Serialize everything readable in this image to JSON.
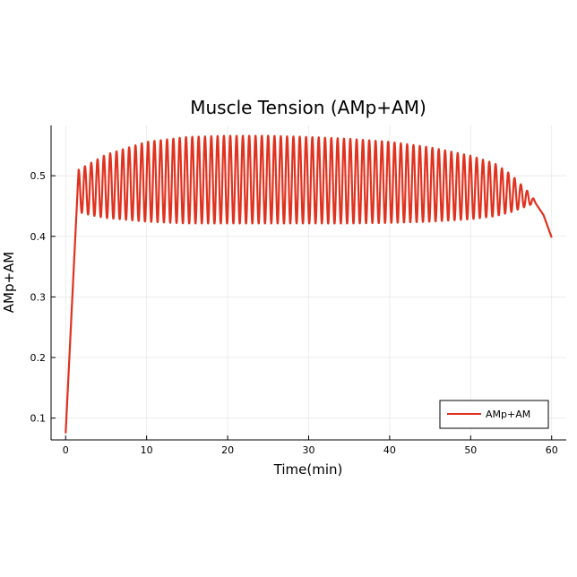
{
  "chart_data": {
    "type": "line",
    "title": "Muscle Tension  (AMp+AM)",
    "xlabel": "Time(min)",
    "ylabel": "AMp+AM",
    "xlim": [
      -1.8,
      61.8
    ],
    "ylim": [
      0.064,
      0.583
    ],
    "xticks": [
      0,
      10,
      20,
      30,
      40,
      50,
      60
    ],
    "yticks": [
      0.1,
      0.2,
      0.3,
      0.4,
      0.5
    ],
    "xtick_labels": [
      "0",
      "10",
      "20",
      "30",
      "40",
      "50",
      "60"
    ],
    "ytick_labels": [
      "0.1",
      "0.2",
      "0.3",
      "0.4",
      "0.5"
    ],
    "grid": true,
    "legend_position": "bottom-right",
    "colors": {
      "series": "#e0321f",
      "axis": "#000000",
      "grid": "#e6e6e6"
    },
    "series": [
      {
        "name": "AMp+AM",
        "description_envelope": {
          "start": [
            0,
            0.075
          ],
          "first_peak": [
            1.6,
            0.51
          ],
          "oscillation_period_min": 0.78,
          "upper": [
            [
              1.6,
              0.51
            ],
            [
              5,
              0.535
            ],
            [
              10,
              0.556
            ],
            [
              15,
              0.564
            ],
            [
              20,
              0.566
            ],
            [
              25,
              0.566
            ],
            [
              30,
              0.564
            ],
            [
              35,
              0.561
            ],
            [
              40,
              0.556
            ],
            [
              45,
              0.547
            ],
            [
              50,
              0.533
            ],
            [
              53,
              0.52
            ],
            [
              55,
              0.502
            ],
            [
              57,
              0.475
            ],
            [
              58,
              0.458
            ]
          ],
          "lower": [
            [
              1.6,
              0.44
            ],
            [
              3,
              0.435
            ],
            [
              5,
              0.43
            ],
            [
              10,
              0.424
            ],
            [
              15,
              0.421
            ],
            [
              20,
              0.421
            ],
            [
              25,
              0.421
            ],
            [
              30,
              0.421
            ],
            [
              35,
              0.421
            ],
            [
              40,
              0.422
            ],
            [
              45,
              0.424
            ],
            [
              50,
              0.428
            ],
            [
              53,
              0.433
            ],
            [
              55,
              0.44
            ],
            [
              57,
              0.45
            ],
            [
              58,
              0.455
            ]
          ],
          "end": [
            [
              58,
              0.455
            ],
            [
              59,
              0.435
            ],
            [
              60,
              0.398
            ]
          ]
        }
      }
    ]
  },
  "legend": {
    "items": [
      {
        "label": "AMp+AM"
      }
    ]
  }
}
